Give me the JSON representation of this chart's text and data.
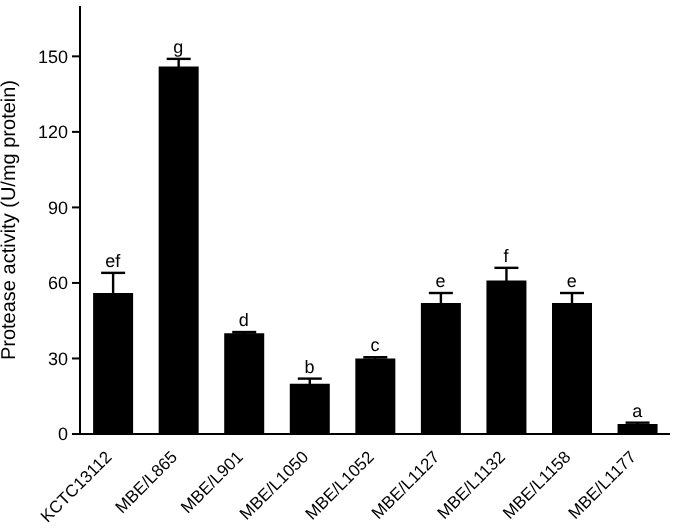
{
  "chart_data": {
    "type": "bar",
    "ylabel": "Protease activity (U/mg protein)",
    "categories": [
      "KCTC13112",
      "MBE/L865",
      "MBE/L901",
      "MBE/L1050",
      "MBE/L1052",
      "MBE/L1127",
      "MBE/L1132",
      "MBE/L1158",
      "MBE/L1177"
    ],
    "values": [
      56,
      146,
      40,
      20,
      30,
      52,
      61,
      52,
      4
    ],
    "errors": [
      8,
      3,
      0.5,
      2,
      0.5,
      4,
      5,
      4,
      0.5
    ],
    "color": "#000000",
    "ylim": [
      0,
      170
    ],
    "yticks": [
      0,
      30,
      60,
      90,
      120,
      150
    ],
    "annotations": [
      {
        "text": "ef",
        "x": "KCTC13112",
        "y": 64
      },
      {
        "text": "g",
        "x": "MBE/L865",
        "y": 149
      },
      {
        "text": "d",
        "x": "MBE/L901",
        "y": 40.5
      },
      {
        "text": "b",
        "x": "MBE/L1050",
        "y": 22
      },
      {
        "text": "c",
        "x": "MBE/L1052",
        "y": 30.5
      },
      {
        "text": "e",
        "x": "MBE/L1127",
        "y": 56
      },
      {
        "text": "f",
        "x": "MBE/L1132",
        "y": 66
      },
      {
        "text": "e",
        "x": "MBE/L1158",
        "y": 56
      },
      {
        "text": "a",
        "x": "MBE/L1177",
        "y": 4.5
      }
    ]
  }
}
